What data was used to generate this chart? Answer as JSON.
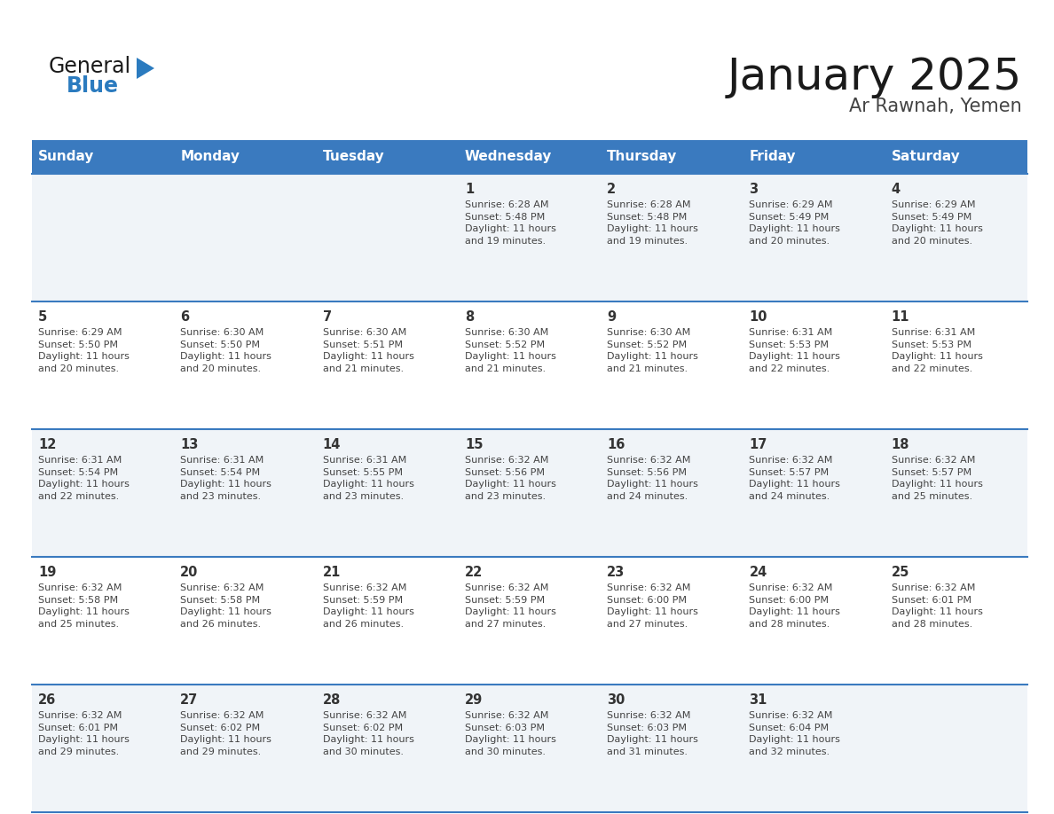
{
  "title": "January 2025",
  "subtitle": "Ar Rawnah, Yemen",
  "header_bg": "#3a7abf",
  "header_text": "#ffffff",
  "day_names": [
    "Sunday",
    "Monday",
    "Tuesday",
    "Wednesday",
    "Thursday",
    "Friday",
    "Saturday"
  ],
  "row_bg_odd": "#f0f4f8",
  "row_bg_even": "#ffffff",
  "border_color": "#3a7abf",
  "date_color": "#333333",
  "info_color": "#444444",
  "logo_general_color": "#1a1a1a",
  "logo_blue_color": "#2b7bbf",
  "weeks": [
    {
      "days": [
        {
          "date": "",
          "sunrise": "",
          "sunset": "",
          "daylight": ""
        },
        {
          "date": "",
          "sunrise": "",
          "sunset": "",
          "daylight": ""
        },
        {
          "date": "",
          "sunrise": "",
          "sunset": "",
          "daylight": ""
        },
        {
          "date": "1",
          "sunrise": "6:28 AM",
          "sunset": "5:48 PM",
          "daylight_hrs": "11 hours",
          "daylight_min": "and 19 minutes."
        },
        {
          "date": "2",
          "sunrise": "6:28 AM",
          "sunset": "5:48 PM",
          "daylight_hrs": "11 hours",
          "daylight_min": "and 19 minutes."
        },
        {
          "date": "3",
          "sunrise": "6:29 AM",
          "sunset": "5:49 PM",
          "daylight_hrs": "11 hours",
          "daylight_min": "and 20 minutes."
        },
        {
          "date": "4",
          "sunrise": "6:29 AM",
          "sunset": "5:49 PM",
          "daylight_hrs": "11 hours",
          "daylight_min": "and 20 minutes."
        }
      ]
    },
    {
      "days": [
        {
          "date": "5",
          "sunrise": "6:29 AM",
          "sunset": "5:50 PM",
          "daylight_hrs": "11 hours",
          "daylight_min": "and 20 minutes."
        },
        {
          "date": "6",
          "sunrise": "6:30 AM",
          "sunset": "5:50 PM",
          "daylight_hrs": "11 hours",
          "daylight_min": "and 20 minutes."
        },
        {
          "date": "7",
          "sunrise": "6:30 AM",
          "sunset": "5:51 PM",
          "daylight_hrs": "11 hours",
          "daylight_min": "and 21 minutes."
        },
        {
          "date": "8",
          "sunrise": "6:30 AM",
          "sunset": "5:52 PM",
          "daylight_hrs": "11 hours",
          "daylight_min": "and 21 minutes."
        },
        {
          "date": "9",
          "sunrise": "6:30 AM",
          "sunset": "5:52 PM",
          "daylight_hrs": "11 hours",
          "daylight_min": "and 21 minutes."
        },
        {
          "date": "10",
          "sunrise": "6:31 AM",
          "sunset": "5:53 PM",
          "daylight_hrs": "11 hours",
          "daylight_min": "and 22 minutes."
        },
        {
          "date": "11",
          "sunrise": "6:31 AM",
          "sunset": "5:53 PM",
          "daylight_hrs": "11 hours",
          "daylight_min": "and 22 minutes."
        }
      ]
    },
    {
      "days": [
        {
          "date": "12",
          "sunrise": "6:31 AM",
          "sunset": "5:54 PM",
          "daylight_hrs": "11 hours",
          "daylight_min": "and 22 minutes."
        },
        {
          "date": "13",
          "sunrise": "6:31 AM",
          "sunset": "5:54 PM",
          "daylight_hrs": "11 hours",
          "daylight_min": "and 23 minutes."
        },
        {
          "date": "14",
          "sunrise": "6:31 AM",
          "sunset": "5:55 PM",
          "daylight_hrs": "11 hours",
          "daylight_min": "and 23 minutes."
        },
        {
          "date": "15",
          "sunrise": "6:32 AM",
          "sunset": "5:56 PM",
          "daylight_hrs": "11 hours",
          "daylight_min": "and 23 minutes."
        },
        {
          "date": "16",
          "sunrise": "6:32 AM",
          "sunset": "5:56 PM",
          "daylight_hrs": "11 hours",
          "daylight_min": "and 24 minutes."
        },
        {
          "date": "17",
          "sunrise": "6:32 AM",
          "sunset": "5:57 PM",
          "daylight_hrs": "11 hours",
          "daylight_min": "and 24 minutes."
        },
        {
          "date": "18",
          "sunrise": "6:32 AM",
          "sunset": "5:57 PM",
          "daylight_hrs": "11 hours",
          "daylight_min": "and 25 minutes."
        }
      ]
    },
    {
      "days": [
        {
          "date": "19",
          "sunrise": "6:32 AM",
          "sunset": "5:58 PM",
          "daylight_hrs": "11 hours",
          "daylight_min": "and 25 minutes."
        },
        {
          "date": "20",
          "sunrise": "6:32 AM",
          "sunset": "5:58 PM",
          "daylight_hrs": "11 hours",
          "daylight_min": "and 26 minutes."
        },
        {
          "date": "21",
          "sunrise": "6:32 AM",
          "sunset": "5:59 PM",
          "daylight_hrs": "11 hours",
          "daylight_min": "and 26 minutes."
        },
        {
          "date": "22",
          "sunrise": "6:32 AM",
          "sunset": "5:59 PM",
          "daylight_hrs": "11 hours",
          "daylight_min": "and 27 minutes."
        },
        {
          "date": "23",
          "sunrise": "6:32 AM",
          "sunset": "6:00 PM",
          "daylight_hrs": "11 hours",
          "daylight_min": "and 27 minutes."
        },
        {
          "date": "24",
          "sunrise": "6:32 AM",
          "sunset": "6:00 PM",
          "daylight_hrs": "11 hours",
          "daylight_min": "and 28 minutes."
        },
        {
          "date": "25",
          "sunrise": "6:32 AM",
          "sunset": "6:01 PM",
          "daylight_hrs": "11 hours",
          "daylight_min": "and 28 minutes."
        }
      ]
    },
    {
      "days": [
        {
          "date": "26",
          "sunrise": "6:32 AM",
          "sunset": "6:01 PM",
          "daylight_hrs": "11 hours",
          "daylight_min": "and 29 minutes."
        },
        {
          "date": "27",
          "sunrise": "6:32 AM",
          "sunset": "6:02 PM",
          "daylight_hrs": "11 hours",
          "daylight_min": "and 29 minutes."
        },
        {
          "date": "28",
          "sunrise": "6:32 AM",
          "sunset": "6:02 PM",
          "daylight_hrs": "11 hours",
          "daylight_min": "and 30 minutes."
        },
        {
          "date": "29",
          "sunrise": "6:32 AM",
          "sunset": "6:03 PM",
          "daylight_hrs": "11 hours",
          "daylight_min": "and 30 minutes."
        },
        {
          "date": "30",
          "sunrise": "6:32 AM",
          "sunset": "6:03 PM",
          "daylight_hrs": "11 hours",
          "daylight_min": "and 31 minutes."
        },
        {
          "date": "31",
          "sunrise": "6:32 AM",
          "sunset": "6:04 PM",
          "daylight_hrs": "11 hours",
          "daylight_min": "and 32 minutes."
        },
        {
          "date": "",
          "sunrise": "",
          "sunset": "",
          "daylight_hrs": "",
          "daylight_min": ""
        }
      ]
    }
  ]
}
